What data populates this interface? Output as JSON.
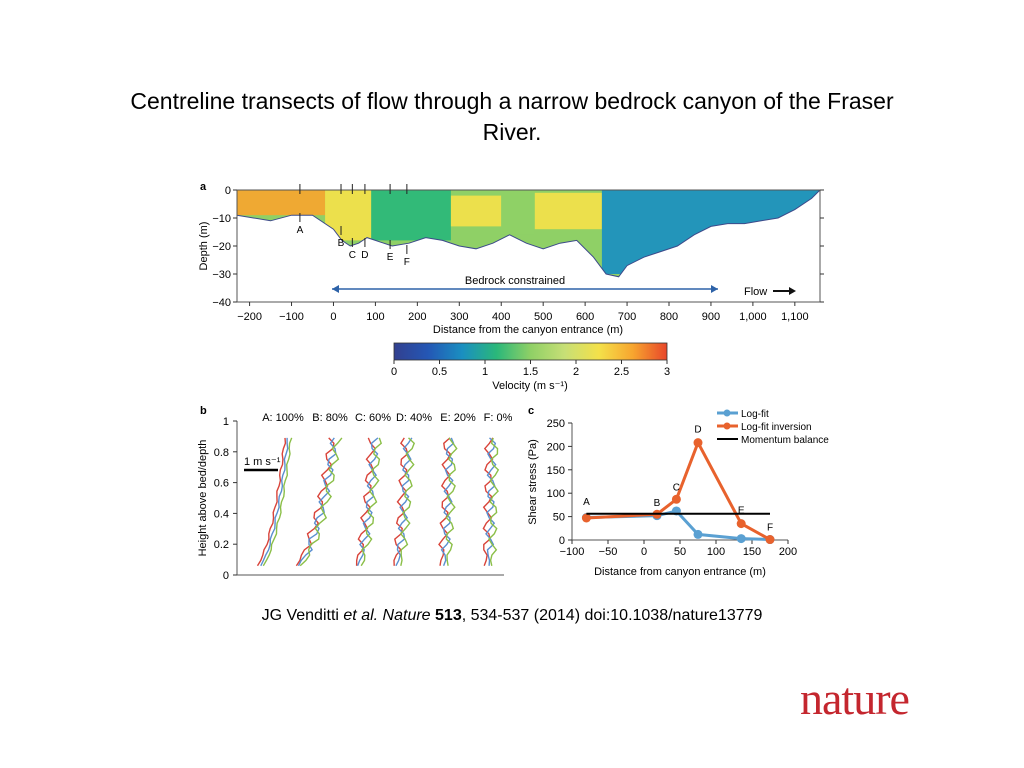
{
  "slide": {
    "title": "Centreline transects of flow through a narrow bedrock canyon of the Fraser River.",
    "citation": {
      "authors": "JG Venditti ",
      "etal": "et al. Nature",
      "volume": "513",
      "pages": ", 534-537 (2014) doi:10.1038/nature13779"
    },
    "brand": "nature"
  },
  "colors": {
    "orange": "#e8622d",
    "blue": "#5aa0d2",
    "black": "#000000",
    "navy": "#1d3e96",
    "green": "#8fc95a"
  },
  "chart_data": [
    {
      "panel": "a",
      "type": "heatmap",
      "xlabel": "Distance from the canyon entrance (m)",
      "ylabel": "Depth (m)",
      "xlim": [
        -230,
        1160
      ],
      "ylim": [
        -40,
        0
      ],
      "x_ticks": [
        -200,
        -100,
        0,
        100,
        200,
        300,
        400,
        500,
        600,
        700,
        800,
        900,
        1000,
        1100
      ],
      "x_tick_labels": [
        "−200",
        "−100",
        "0",
        "100",
        "200",
        "300",
        "400",
        "500",
        "600",
        "700",
        "800",
        "900",
        "1,000",
        "1,100"
      ],
      "y_ticks": [
        0,
        -10,
        -20,
        -30,
        -40
      ],
      "y_tick_labels": [
        "0",
        "−10",
        "−20",
        "−30",
        "−40"
      ],
      "bed_profile": {
        "x": [
          -230,
          -150,
          -100,
          -50,
          0,
          20,
          40,
          60,
          80,
          100,
          140,
          180,
          220,
          260,
          300,
          340,
          380,
          420,
          460,
          500,
          540,
          580,
          620,
          650,
          680,
          700,
          740,
          780,
          820,
          860,
          900,
          940,
          980,
          1020,
          1060,
          1100,
          1140,
          1160
        ],
        "y": [
          -9,
          -11,
          -9,
          -9,
          -14,
          -18,
          -20,
          -19,
          -17,
          -18,
          -20,
          -19,
          -17,
          -18,
          -20,
          -21,
          -19,
          -16,
          -19,
          -21,
          -19,
          -18,
          -24,
          -30,
          -31,
          -27,
          -24,
          -22,
          -20,
          -16,
          -13,
          -12,
          -12,
          -11,
          -10,
          -7,
          -3,
          0
        ]
      },
      "velocity_zones": [
        {
          "x": [
            -230,
            -20
          ],
          "depth": [
            0,
            -9
          ],
          "velocity": 2.8
        },
        {
          "x": [
            -20,
            90
          ],
          "depth": [
            0,
            -18
          ],
          "velocity": 2.4
        },
        {
          "x": [
            90,
            280
          ],
          "depth": [
            0,
            -18
          ],
          "velocity": 1.3
        },
        {
          "x": [
            280,
            400
          ],
          "depth": [
            -2,
            -13
          ],
          "velocity": 2.4
        },
        {
          "x": [
            400,
            480
          ],
          "depth": [
            0,
            -16
          ],
          "velocity": 1.4
        },
        {
          "x": [
            480,
            640
          ],
          "depth": [
            -1,
            -14
          ],
          "velocity": 2.2
        },
        {
          "x": [
            640,
            1160
          ],
          "depth": [
            0,
            -30
          ],
          "velocity": 0.6
        }
      ],
      "transect_markers": [
        {
          "label": "A",
          "x": -80
        },
        {
          "label": "B",
          "x": 18
        },
        {
          "label": "C",
          "x": 45
        },
        {
          "label": "D",
          "x": 75
        },
        {
          "label": "E",
          "x": 135
        },
        {
          "label": "F",
          "x": 175
        }
      ],
      "annotations": {
        "bedrock": "Bedrock constrained",
        "bedrock_range": [
          0,
          940
        ],
        "flow": "Flow"
      },
      "colorbar": {
        "label": "Velocity (m s⁻¹)",
        "range": [
          0,
          3
        ],
        "ticks": [
          0,
          0.5,
          1,
          1.5,
          2,
          2.5,
          3
        ],
        "tick_labels": [
          "0",
          "0.5",
          "1",
          "1.5",
          "2",
          "2.5",
          "3"
        ],
        "stops": [
          "#32408f",
          "#2457b5",
          "#1a8fc1",
          "#2ab77a",
          "#8fd066",
          "#c7df76",
          "#f4e14a",
          "#f7a52f",
          "#e8462a"
        ]
      }
    },
    {
      "panel": "b",
      "type": "line",
      "ylabel": "Height above bed/depth",
      "ylim": [
        0,
        1
      ],
      "y_ticks": [
        0,
        0.2,
        0.4,
        0.6,
        0.8,
        1
      ],
      "y_tick_labels": [
        "0",
        "0.2",
        "0.4",
        "0.6",
        "0.8",
        "1"
      ],
      "scale_bar": "1 m s⁻¹",
      "column_labels": [
        "A: 100%",
        "B: 80%",
        "C: 60%",
        "D: 40%",
        "E: 20%",
        "F: 0%"
      ],
      "series_colors": [
        "#d9443a",
        "#5a8fd0",
        "#8bbf48"
      ]
    },
    {
      "panel": "c",
      "type": "line",
      "xlabel": "Distance from canyon entrance (m)",
      "ylabel": "Shear stress (Pa)",
      "xlim": [
        -100,
        200
      ],
      "ylim": [
        0,
        250
      ],
      "x_ticks": [
        -100,
        -50,
        0,
        50,
        100,
        150,
        200
      ],
      "x_tick_labels": [
        "−100",
        "−50",
        "0",
        "50",
        "100",
        "150",
        "200"
      ],
      "y_ticks": [
        0,
        50,
        100,
        150,
        200,
        250
      ],
      "y_tick_labels": [
        "0",
        "50",
        "100",
        "150",
        "200",
        "250"
      ],
      "legend_position": "top-right",
      "series": [
        {
          "name": "Log-fit",
          "x": [
            -80,
            18,
            45,
            75,
            135,
            175
          ],
          "values": [
            48,
            52,
            62,
            12,
            3,
            1
          ],
          "color": "#5aa0d2"
        },
        {
          "name": "Log-fit inversion",
          "x": [
            -80,
            18,
            45,
            75,
            135,
            175
          ],
          "values": [
            47,
            55,
            87,
            208,
            35,
            1
          ],
          "color": "#e8622d"
        },
        {
          "name": "Momentum balance",
          "x": [
            -80,
            175
          ],
          "values": [
            56,
            56
          ],
          "color": "#000000"
        }
      ],
      "point_labels": [
        "A",
        "B",
        "C",
        "D",
        "E",
        "F"
      ]
    }
  ]
}
